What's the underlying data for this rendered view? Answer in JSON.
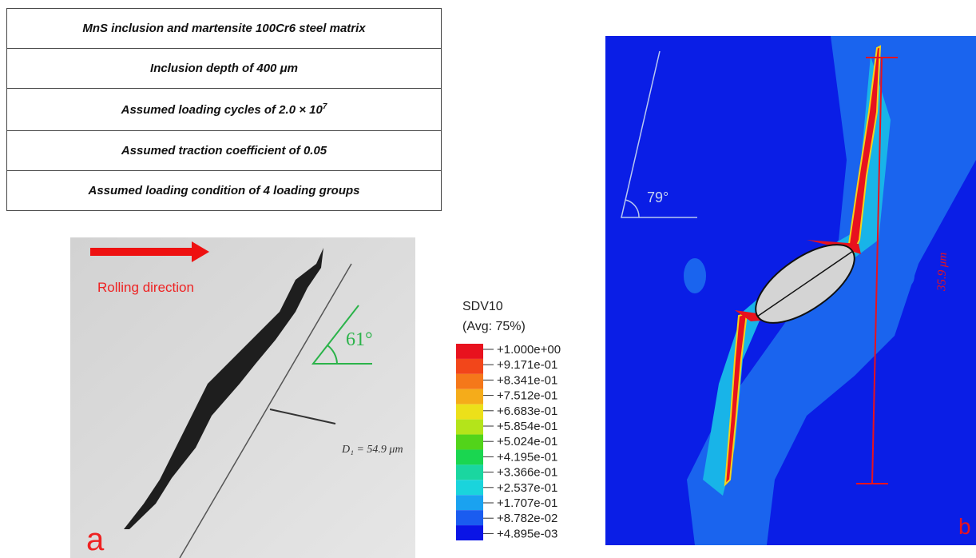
{
  "table": {
    "rows": [
      {
        "text": "MnS inclusion and martensite 100Cr6 steel matrix"
      },
      {
        "text": "Inclusion depth of 400 μm"
      },
      {
        "text": "Assumed loading cycles of 2.0 × 10",
        "sup": "7"
      },
      {
        "text": "Assumed traction coefficient of 0.05"
      },
      {
        "text": "Assumed loading condition of 4 loading groups"
      }
    ]
  },
  "panel_a": {
    "direction": "Rolling direction",
    "angle": "61°",
    "distance": "D₁ = 54.9 μm",
    "letter": "a"
  },
  "legend": {
    "title": "SDV10",
    "subtitle": "(Avg: 75%)",
    "labels": [
      "+1.000e+00",
      "+9.171e-01",
      "+8.341e-01",
      "+7.512e-01",
      "+6.683e-01",
      "+5.854e-01",
      "+5.024e-01",
      "+4.195e-01",
      "+3.366e-01",
      "+2.537e-01",
      "+1.707e-01",
      "+8.782e-02",
      "+4.895e-03"
    ],
    "colors": [
      "#e8121e",
      "#f2461a",
      "#f5781a",
      "#f5ac1a",
      "#ece01a",
      "#b4e41a",
      "#52d41a",
      "#1ad650",
      "#1ad6a0",
      "#1ad4dc",
      "#1aa2f0",
      "#1a5cf0",
      "#0a14e6"
    ]
  },
  "panel_b": {
    "angle": "79°",
    "length": "35.9 μm",
    "letter": "b"
  }
}
